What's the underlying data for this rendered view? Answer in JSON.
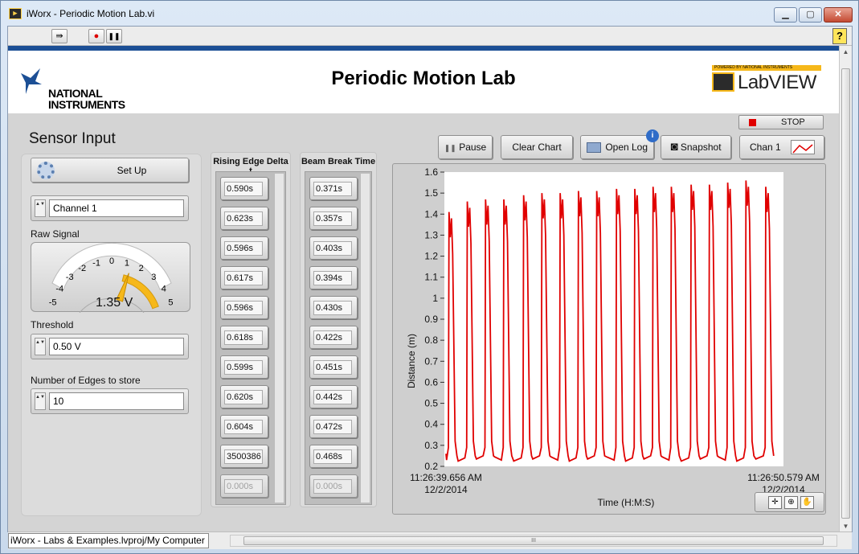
{
  "window": {
    "title": "iWorx - Periodic Motion Lab.vi",
    "app_icon_glyph": "▶",
    "min_glyph": "▁",
    "max_glyph": "▢",
    "close_glyph": "✕"
  },
  "toolbar": {
    "run_glyph": "⇛",
    "abort_glyph": "●",
    "pause_glyph": "❚❚",
    "help_glyph": "?"
  },
  "header": {
    "ni_logo_line1": "NATIONAL",
    "ni_logo_line2": "INSTRUMENTS",
    "page_title": "Periodic Motion Lab",
    "labview_small": "POWERED BY NATIONAL INSTRUMENTS",
    "labview_text": "LabVIEW"
  },
  "sensor": {
    "section_title": "Sensor Input",
    "setup_label": "Set Up",
    "channel_value": "Channel 1",
    "raw_signal_label": "Raw Signal",
    "gauge_ticks": [
      "-5",
      "-4",
      "-3",
      "-2",
      "-1",
      "0",
      "1",
      "2",
      "3",
      "4",
      "5"
    ],
    "gauge_reading": "1.35 V",
    "gauge_value": 1.35,
    "threshold_label": "Threshold",
    "threshold_value": "0.50 V",
    "edges_label": "Number of Edges to store",
    "edges_value": "10",
    "spin_glyph": "▲▼"
  },
  "arrays": {
    "rising_header": "Rising Edge Delta t",
    "rising_values": [
      "0.590s",
      "0.623s",
      "0.596s",
      "0.617s",
      "0.596s",
      "0.618s",
      "0.599s",
      "0.620s",
      "0.604s",
      "3500386",
      "0.000s"
    ],
    "beam_header": "Beam Break Time",
    "beam_values": [
      "0.371s",
      "0.357s",
      "0.403s",
      "0.394s",
      "0.430s",
      "0.422s",
      "0.451s",
      "0.442s",
      "0.472s",
      "0.468s",
      "0.000s"
    ]
  },
  "controls": {
    "stop_label": "STOP",
    "pause_label": "Pause",
    "clear_chart_label": "Clear Chart",
    "open_log_label": "Open Log",
    "snapshot_label": "Snapshot",
    "chan_label": "Chan 1",
    "info_glyph": "i",
    "pause_glyph": "❚❚",
    "camera_glyph": "◙",
    "tool_cursor_glyph": "✛",
    "tool_zoom_glyph": "⊕",
    "tool_pan_glyph": "✋"
  },
  "colors": {
    "trace": "#e00000",
    "header_rule": "#1c4f95",
    "gauge_band": "#f6b81a"
  },
  "status": {
    "path": "iWorx - Labs & Examples.lvproj/My Computer",
    "scroll_grip": "III"
  },
  "chart_data": {
    "type": "line",
    "ylabel": "Distance (m)",
    "xlabel": "Time (H:M:S)",
    "ylim": [
      0.2,
      1.6
    ],
    "y_ticks": [
      "0.2",
      "0.3",
      "0.4",
      "0.5",
      "0.6",
      "0.7",
      "0.8",
      "0.9",
      "1",
      "1.1",
      "1.2",
      "1.3",
      "1.4",
      "1.5",
      "1.6"
    ],
    "x_start_time": "11:26:39.656 AM",
    "x_start_date": "12/2/2014",
    "x_end_time": "11:26:50.579 AM",
    "x_end_date": "12/2/2014",
    "grid": false,
    "series": [
      {
        "peak_times_s": [
          0.1,
          0.7,
          1.3,
          1.9,
          2.55,
          3.15,
          3.75,
          4.35,
          4.95,
          5.6,
          6.2,
          6.8,
          7.4,
          8.05,
          8.65,
          9.25,
          9.85,
          10.5
        ],
        "peak_values": [
          1.41,
          1.46,
          1.47,
          1.47,
          1.49,
          1.5,
          1.5,
          1.51,
          1.51,
          1.52,
          1.52,
          1.53,
          1.53,
          1.54,
          1.54,
          1.55,
          1.56,
          1.53
        ],
        "baseline": 0.24
      }
    ]
  }
}
